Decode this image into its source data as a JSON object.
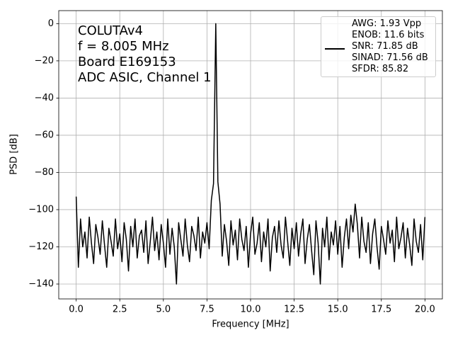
{
  "chart_data": {
    "type": "line",
    "xlabel": "Frequency [MHz]",
    "ylabel": "PSD [dB]",
    "annotations": [
      "COLUTAv4",
      "f = 8.005 MHz",
      "Board E169153",
      "ADC ASIC, Channel 1"
    ],
    "x": [
      0,
      0.125,
      0.25,
      0.375,
      0.5,
      0.625,
      0.75,
      0.875,
      1,
      1.125,
      1.25,
      1.375,
      1.5,
      1.625,
      1.75,
      1.875,
      2,
      2.125,
      2.25,
      2.375,
      2.5,
      2.625,
      2.75,
      2.875,
      3,
      3.125,
      3.25,
      3.375,
      3.5,
      3.625,
      3.75,
      3.875,
      4,
      4.125,
      4.25,
      4.375,
      4.5,
      4.625,
      4.75,
      4.875,
      5,
      5.125,
      5.25,
      5.375,
      5.5,
      5.625,
      5.75,
      5.875,
      6,
      6.125,
      6.25,
      6.375,
      6.5,
      6.625,
      6.75,
      6.875,
      7,
      7.125,
      7.25,
      7.375,
      7.5,
      7.625,
      7.75,
      7.875,
      8.005,
      8.125,
      8.25,
      8.375,
      8.5,
      8.625,
      8.75,
      8.875,
      9,
      9.125,
      9.25,
      9.375,
      9.5,
      9.625,
      9.75,
      9.875,
      10,
      10.125,
      10.25,
      10.375,
      10.5,
      10.625,
      10.75,
      10.875,
      11,
      11.125,
      11.25,
      11.375,
      11.5,
      11.625,
      11.75,
      11.875,
      12,
      12.125,
      12.25,
      12.375,
      12.5,
      12.625,
      12.75,
      12.875,
      13,
      13.125,
      13.25,
      13.375,
      13.5,
      13.625,
      13.75,
      13.875,
      14,
      14.125,
      14.25,
      14.375,
      14.5,
      14.625,
      14.75,
      14.875,
      15,
      15.125,
      15.25,
      15.375,
      15.5,
      15.625,
      15.75,
      15.875,
      16,
      16.125,
      16.25,
      16.375,
      16.5,
      16.625,
      16.75,
      16.875,
      17,
      17.125,
      17.25,
      17.375,
      17.5,
      17.625,
      17.75,
      17.875,
      18,
      18.125,
      18.25,
      18.375,
      18.5,
      18.625,
      18.75,
      18.875,
      19,
      19.125,
      19.25,
      19.375,
      19.5,
      19.625,
      19.75,
      19.875,
      20
    ],
    "series": [
      {
        "name": "AWG: 1.93 Vpp\nENOB: 11.6 bits\nSNR: 71.85 dB\nSINAD: 71.56 dB\nSFDR: 85.82",
        "color": "#000000",
        "values": [
          -93,
          -131,
          -105,
          -120,
          -112,
          -126,
          -104,
          -118,
          -129,
          -108,
          -115,
          -124,
          -106,
          -119,
          -131,
          -110,
          -117,
          -125,
          -105,
          -121,
          -113,
          -128,
          -107,
          -116,
          -133,
          -109,
          -120,
          -105,
          -126,
          -114,
          -111,
          -123,
          -106,
          -129,
          -117,
          -104,
          -122,
          -112,
          -127,
          -108,
          -118,
          -131,
          -105,
          -124,
          -110,
          -120,
          -140,
          -107,
          -116,
          -125,
          -105,
          -119,
          -128,
          -109,
          -114,
          -122,
          -104,
          -126,
          -112,
          -118,
          -107,
          -121,
          -95,
          -86,
          0,
          -85,
          -97,
          -125,
          -108,
          -117,
          -130,
          -106,
          -119,
          -111,
          -127,
          -105,
          -116,
          -122,
          -109,
          -131,
          -113,
          -104,
          -124,
          -118,
          -107,
          -128,
          -112,
          -120,
          -105,
          -133,
          -115,
          -109,
          -123,
          -106,
          -119,
          -126,
          -104,
          -117,
          -130,
          -110,
          -121,
          -107,
          -125,
          -113,
          -105,
          -129,
          -116,
          -108,
          -122,
          -135,
          -106,
          -118,
          -140,
          -110,
          -120,
          -104,
          -127,
          -112,
          -119,
          -106,
          -124,
          -109,
          -131,
          -115,
          -105,
          -121,
          -103,
          -112,
          -97,
          -108,
          -126,
          -104,
          -117,
          -123,
          -107,
          -129,
          -113,
          -105,
          -120,
          -132,
          -109,
          -116,
          -124,
          -106,
          -118,
          -111,
          -128,
          -104,
          -121,
          -115,
          -107,
          -126,
          -110,
          -119,
          -130,
          -105,
          -117,
          -123,
          -108,
          -127,
          -104
        ]
      }
    ],
    "xlim": [
      -1,
      21
    ],
    "ylim": [
      -148,
      7
    ],
    "xticks": [
      {
        "value": 0,
        "label": "0.0"
      },
      {
        "value": 2.5,
        "label": "2.5"
      },
      {
        "value": 5,
        "label": "5.0"
      },
      {
        "value": 7.5,
        "label": "7.5"
      },
      {
        "value": 10,
        "label": "10.0"
      },
      {
        "value": 12.5,
        "label": "12.5"
      },
      {
        "value": 15,
        "label": "15.0"
      },
      {
        "value": 17.5,
        "label": "17.5"
      },
      {
        "value": 20,
        "label": "20.0"
      }
    ],
    "yticks": [
      {
        "value": -140,
        "label": "−140"
      },
      {
        "value": -120,
        "label": "−120"
      },
      {
        "value": -100,
        "label": "−100"
      },
      {
        "value": -80,
        "label": "−80"
      },
      {
        "value": -60,
        "label": "−60"
      },
      {
        "value": -40,
        "label": "−40"
      },
      {
        "value": -20,
        "label": "−20"
      },
      0
    ],
    "grid": true,
    "legend": "upper right"
  }
}
